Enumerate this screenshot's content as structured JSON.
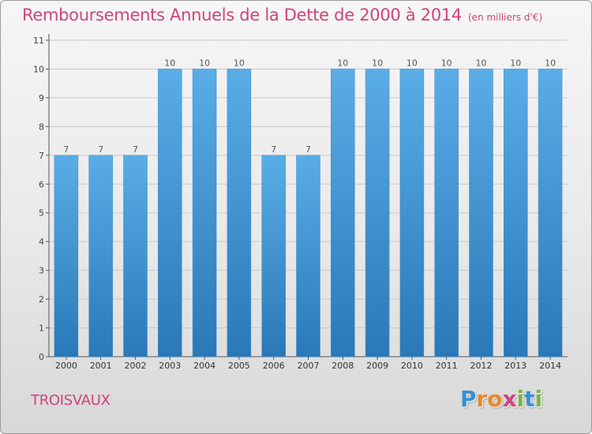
{
  "chart_data": {
    "type": "bar",
    "title": "Remboursements Annuels de la Dette de 2000 à 2014",
    "subtitle": "(en milliers d'€)",
    "categories": [
      "2000",
      "2001",
      "2002",
      "2003",
      "2004",
      "2005",
      "2006",
      "2007",
      "2008",
      "2009",
      "2010",
      "2011",
      "2012",
      "2013",
      "2014"
    ],
    "values": [
      7,
      7,
      7,
      10,
      10,
      10,
      7,
      7,
      10,
      10,
      10,
      10,
      10,
      10,
      10
    ],
    "y_ticks": [
      0,
      1,
      2,
      3,
      4,
      5,
      6,
      7,
      8,
      9,
      10,
      11
    ],
    "ylim": [
      0,
      11
    ],
    "xlabel": "",
    "ylabel": "",
    "grid": true,
    "bar_color_top": "#5aade6",
    "bar_color_bottom": "#2a78b8",
    "grid_color": "#c9c9c9"
  },
  "commune": "TROISVAUX",
  "logo": {
    "letters": [
      "P",
      "r",
      "o",
      "x",
      "i",
      "t",
      "i"
    ],
    "colors": [
      "#3a8fd4",
      "#e6892a",
      "#e6892a",
      "#d0447a",
      "#7cb342",
      "#3a8fd4",
      "#7cb342"
    ]
  }
}
